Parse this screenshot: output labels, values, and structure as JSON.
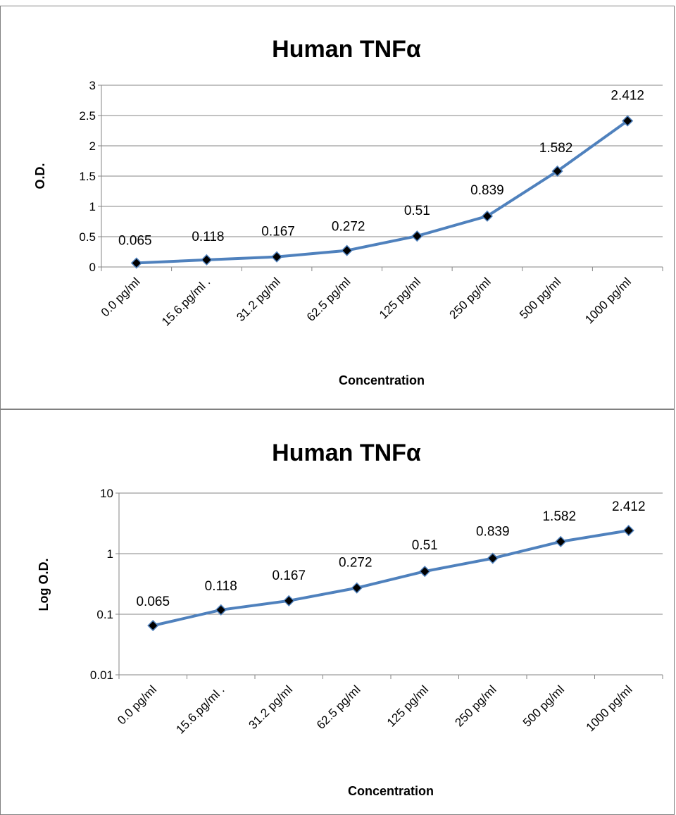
{
  "chart_data": [
    {
      "type": "line",
      "title": "Human TNFα",
      "xlabel": "Concentration",
      "ylabel": "O.D.",
      "categories": [
        "0.0 pg/ml",
        "15.6.pg/ml .",
        "31.2 pg/ml",
        "62.5 pg/ml",
        "125 pg/ml",
        "250 pg/ml",
        "500  pg/ml",
        "1000 pg/ml"
      ],
      "values": [
        0.065,
        0.118,
        0.167,
        0.272,
        0.51,
        0.839,
        1.582,
        2.412
      ],
      "data_labels": [
        "0.065",
        "0.118",
        "0.167",
        "0.272",
        "0.51",
        "0.839",
        "1.582",
        "2.412"
      ],
      "ylim": [
        0,
        3
      ],
      "yticks": [
        0,
        0.5,
        1,
        1.5,
        2,
        2.5,
        3
      ],
      "ytick_labels": [
        "0",
        "0.5",
        "1",
        "1.5",
        "2",
        "2.5",
        "3"
      ],
      "yscale": "linear",
      "grid": "horizontal",
      "legend": "none",
      "line_color": "#4f81bd",
      "marker_color": "#000000"
    },
    {
      "type": "line",
      "title": "Human TNFα",
      "xlabel": "Concentration",
      "ylabel": "Log O.D.",
      "categories": [
        "0.0 pg/ml",
        "15.6.pg/ml .",
        "31.2 pg/ml",
        "62.5 pg/ml",
        "125 pg/ml",
        "250 pg/ml",
        "500  pg/ml",
        "1000 pg/ml"
      ],
      "values": [
        0.065,
        0.118,
        0.167,
        0.272,
        0.51,
        0.839,
        1.582,
        2.412
      ],
      "data_labels": [
        "0.065",
        "0.118",
        "0.167",
        "0.272",
        "0.51",
        "0.839",
        "1.582",
        "2.412"
      ],
      "ylim": [
        0.01,
        10
      ],
      "yticks": [
        0.01,
        0.1,
        1,
        10
      ],
      "ytick_labels": [
        "0.01",
        "0.1",
        "1",
        "10"
      ],
      "yscale": "log",
      "grid": "horizontal",
      "legend": "none",
      "line_color": "#4f81bd",
      "marker_color": "#000000"
    }
  ]
}
